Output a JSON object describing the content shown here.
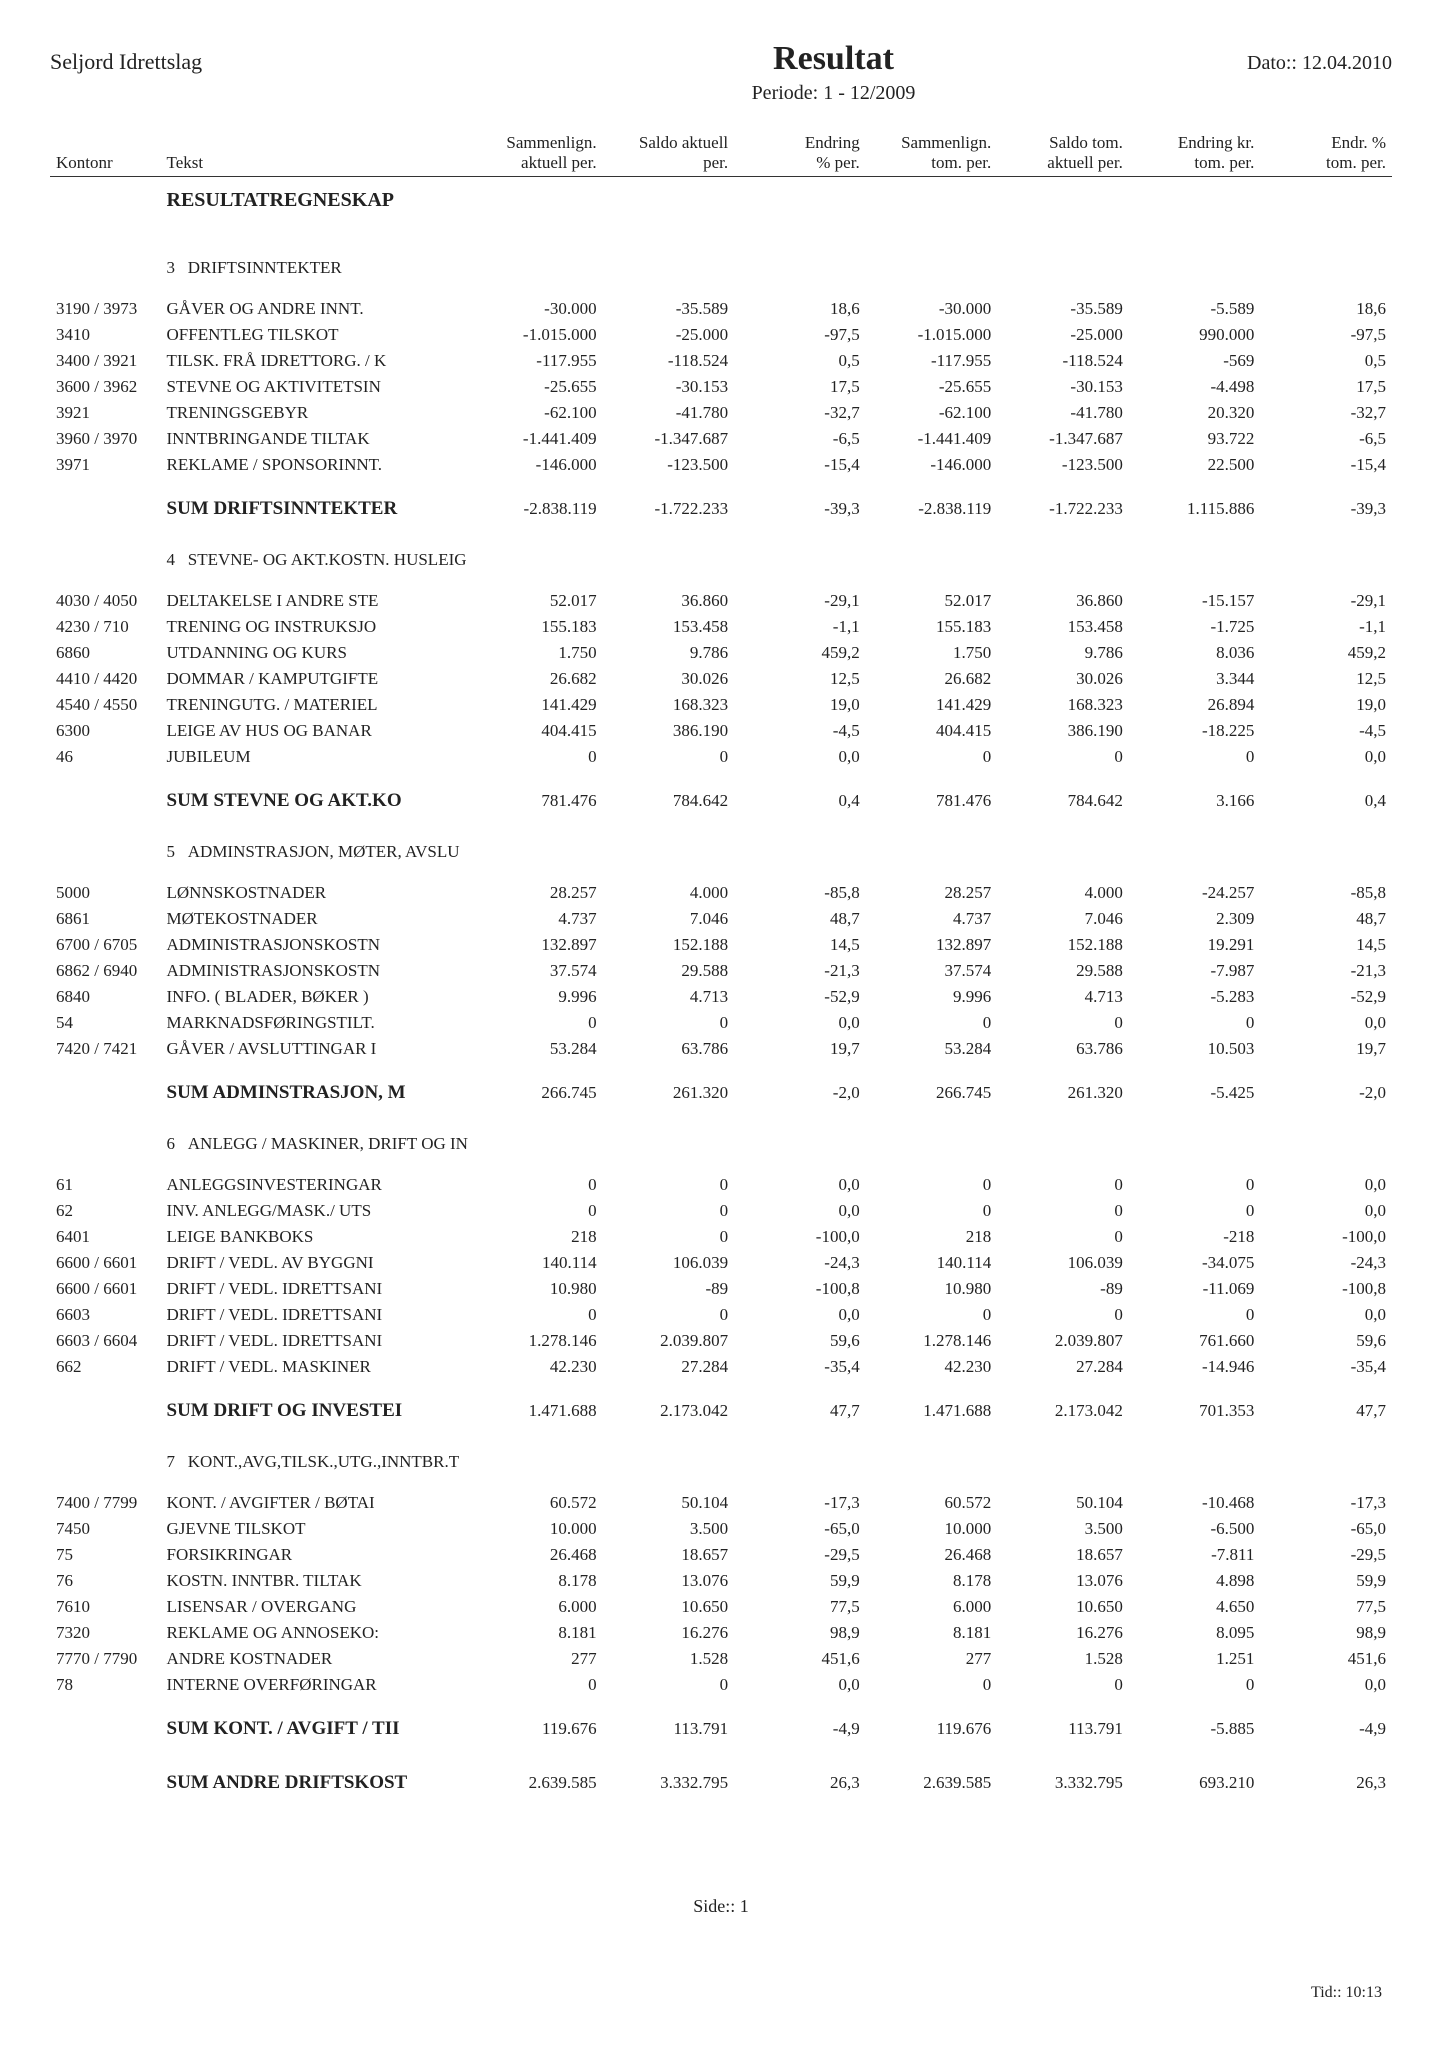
{
  "header": {
    "org": "Seljord Idrettslag",
    "title": "Resultat",
    "period": "Periode: 1 - 12/2009",
    "date": "Dato:: 12.04.2010"
  },
  "columns": {
    "konto": "Kontonr",
    "tekst": "Tekst",
    "c1a": "Sammenlign.",
    "c1b": "aktuell per.",
    "c2a": "Saldo aktuell",
    "c2b": "per.",
    "c3a": "Endring",
    "c3b": "% per.",
    "c4a": "Sammenlign.",
    "c4b": "tom. per.",
    "c5a": "Saldo tom.",
    "c5b": "aktuell per.",
    "c6a": "Endring kr.",
    "c6b": "tom. per.",
    "c7a": "Endr. %",
    "c7b": "tom. per."
  },
  "sectionTitle": "RESULTATREGNESKAP",
  "groups": [
    {
      "catNo": "3",
      "catName": "DRIFTSINNTEKTER",
      "rows": [
        {
          "konto": "3190 / 3973",
          "tekst": "GÅVER OG ANDRE INNT.",
          "v": [
            "-30.000",
            "-35.589",
            "18,6",
            "-30.000",
            "-35.589",
            "-5.589",
            "18,6"
          ]
        },
        {
          "konto": "3410",
          "tekst": "OFFENTLEG TILSKOT",
          "v": [
            "-1.015.000",
            "-25.000",
            "-97,5",
            "-1.015.000",
            "-25.000",
            "990.000",
            "-97,5"
          ]
        },
        {
          "konto": "3400 / 3921",
          "tekst": "TILSK. FRÅ IDRETTORG. / K",
          "v": [
            "-117.955",
            "-118.524",
            "0,5",
            "-117.955",
            "-118.524",
            "-569",
            "0,5"
          ]
        },
        {
          "konto": "3600 / 3962",
          "tekst": "STEVNE OG AKTIVITETSIN",
          "v": [
            "-25.655",
            "-30.153",
            "17,5",
            "-25.655",
            "-30.153",
            "-4.498",
            "17,5"
          ]
        },
        {
          "konto": "3921",
          "tekst": "TRENINGSGEBYR",
          "v": [
            "-62.100",
            "-41.780",
            "-32,7",
            "-62.100",
            "-41.780",
            "20.320",
            "-32,7"
          ]
        },
        {
          "konto": "3960 / 3970",
          "tekst": "INNTBRINGANDE TILTAK",
          "v": [
            "-1.441.409",
            "-1.347.687",
            "-6,5",
            "-1.441.409",
            "-1.347.687",
            "93.722",
            "-6,5"
          ]
        },
        {
          "konto": "3971",
          "tekst": "REKLAME / SPONSORINNT.",
          "v": [
            "-146.000",
            "-123.500",
            "-15,4",
            "-146.000",
            "-123.500",
            "22.500",
            "-15,4"
          ]
        }
      ],
      "sum": {
        "label": "SUM DRIFTSINNTEKTER",
        "v": [
          "-2.838.119",
          "-1.722.233",
          "-39,3",
          "-2.838.119",
          "-1.722.233",
          "1.115.886",
          "-39,3"
        ]
      }
    },
    {
      "catNo": "4",
      "catName": "STEVNE- OG AKT.KOSTN. HUSLEIG",
      "rows": [
        {
          "konto": "4030 / 4050",
          "tekst": "DELTAKELSE I ANDRE STE",
          "v": [
            "52.017",
            "36.860",
            "-29,1",
            "52.017",
            "36.860",
            "-15.157",
            "-29,1"
          ]
        },
        {
          "konto": "4230 / 710",
          "tekst": "TRENING OG INSTRUKSJO",
          "v": [
            "155.183",
            "153.458",
            "-1,1",
            "155.183",
            "153.458",
            "-1.725",
            "-1,1"
          ]
        },
        {
          "konto": "6860",
          "tekst": "UTDANNING OG KURS",
          "v": [
            "1.750",
            "9.786",
            "459,2",
            "1.750",
            "9.786",
            "8.036",
            "459,2"
          ]
        },
        {
          "konto": "4410 / 4420",
          "tekst": "DOMMAR / KAMPUTGIFTE",
          "v": [
            "26.682",
            "30.026",
            "12,5",
            "26.682",
            "30.026",
            "3.344",
            "12,5"
          ]
        },
        {
          "konto": "4540 / 4550",
          "tekst": "TRENINGUTG. / MATERIEL",
          "v": [
            "141.429",
            "168.323",
            "19,0",
            "141.429",
            "168.323",
            "26.894",
            "19,0"
          ]
        },
        {
          "konto": "6300",
          "tekst": "LEIGE AV HUS OG BANAR",
          "v": [
            "404.415",
            "386.190",
            "-4,5",
            "404.415",
            "386.190",
            "-18.225",
            "-4,5"
          ]
        },
        {
          "konto": "46",
          "tekst": "JUBILEUM",
          "v": [
            "0",
            "0",
            "0,0",
            "0",
            "0",
            "0",
            "0,0"
          ]
        }
      ],
      "sum": {
        "label": "SUM STEVNE OG AKT.KO",
        "v": [
          "781.476",
          "784.642",
          "0,4",
          "781.476",
          "784.642",
          "3.166",
          "0,4"
        ]
      }
    },
    {
      "catNo": "5",
      "catName": "ADMINSTRASJON, MØTER, AVSLU",
      "rows": [
        {
          "konto": "5000",
          "tekst": "LØNNSKOSTNADER",
          "v": [
            "28.257",
            "4.000",
            "-85,8",
            "28.257",
            "4.000",
            "-24.257",
            "-85,8"
          ]
        },
        {
          "konto": "6861",
          "tekst": "MØTEKOSTNADER",
          "v": [
            "4.737",
            "7.046",
            "48,7",
            "4.737",
            "7.046",
            "2.309",
            "48,7"
          ]
        },
        {
          "konto": "6700 / 6705",
          "tekst": "ADMINISTRASJONSKOSTN",
          "v": [
            "132.897",
            "152.188",
            "14,5",
            "132.897",
            "152.188",
            "19.291",
            "14,5"
          ]
        },
        {
          "konto": "6862 / 6940",
          "tekst": "ADMINISTRASJONSKOSTN",
          "v": [
            "37.574",
            "29.588",
            "-21,3",
            "37.574",
            "29.588",
            "-7.987",
            "-21,3"
          ]
        },
        {
          "konto": "6840",
          "tekst": "INFO. ( BLADER, BØKER )",
          "v": [
            "9.996",
            "4.713",
            "-52,9",
            "9.996",
            "4.713",
            "-5.283",
            "-52,9"
          ]
        },
        {
          "konto": "54",
          "tekst": "MARKNADSFØRINGSTILT.",
          "v": [
            "0",
            "0",
            "0,0",
            "0",
            "0",
            "0",
            "0,0"
          ]
        },
        {
          "konto": "7420 / 7421",
          "tekst": "GÅVER / AVSLUTTINGAR I",
          "v": [
            "53.284",
            "63.786",
            "19,7",
            "53.284",
            "63.786",
            "10.503",
            "19,7"
          ]
        }
      ],
      "sum": {
        "label": "SUM ADMINSTRASJON, M",
        "v": [
          "266.745",
          "261.320",
          "-2,0",
          "266.745",
          "261.320",
          "-5.425",
          "-2,0"
        ]
      }
    },
    {
      "catNo": "6",
      "catName": "ANLEGG / MASKINER, DRIFT OG IN",
      "rows": [
        {
          "konto": "61",
          "tekst": "ANLEGGSINVESTERINGAR",
          "v": [
            "0",
            "0",
            "0,0",
            "0",
            "0",
            "0",
            "0,0"
          ]
        },
        {
          "konto": "62",
          "tekst": "INV. ANLEGG/MASK./ UTS",
          "v": [
            "0",
            "0",
            "0,0",
            "0",
            "0",
            "0",
            "0,0"
          ]
        },
        {
          "konto": "6401",
          "tekst": "LEIGE BANKBOKS",
          "v": [
            "218",
            "0",
            "-100,0",
            "218",
            "0",
            "-218",
            "-100,0"
          ]
        },
        {
          "konto": "6600 / 6601",
          "tekst": "DRIFT / VEDL. AV BYGGNI",
          "v": [
            "140.114",
            "106.039",
            "-24,3",
            "140.114",
            "106.039",
            "-34.075",
            "-24,3"
          ]
        },
        {
          "konto": "6600 / 6601",
          "tekst": "DRIFT / VEDL. IDRETTSANI",
          "v": [
            "10.980",
            "-89",
            "-100,8",
            "10.980",
            "-89",
            "-11.069",
            "-100,8"
          ]
        },
        {
          "konto": "6603",
          "tekst": "DRIFT / VEDL. IDRETTSANI",
          "v": [
            "0",
            "0",
            "0,0",
            "0",
            "0",
            "0",
            "0,0"
          ]
        },
        {
          "konto": "6603 / 6604",
          "tekst": "DRIFT / VEDL. IDRETTSANI",
          "v": [
            "1.278.146",
            "2.039.807",
            "59,6",
            "1.278.146",
            "2.039.807",
            "761.660",
            "59,6"
          ]
        },
        {
          "konto": "662",
          "tekst": "DRIFT / VEDL. MASKINER",
          "v": [
            "42.230",
            "27.284",
            "-35,4",
            "42.230",
            "27.284",
            "-14.946",
            "-35,4"
          ]
        }
      ],
      "sum": {
        "label": "SUM DRIFT OG INVESTEI",
        "v": [
          "1.471.688",
          "2.173.042",
          "47,7",
          "1.471.688",
          "2.173.042",
          "701.353",
          "47,7"
        ]
      }
    },
    {
      "catNo": "7",
      "catName": "KONT.,AVG,TILSK.,UTG.,INNTBR.T",
      "rows": [
        {
          "konto": "7400 / 7799",
          "tekst": "KONT. / AVGIFTER / BØTAI",
          "v": [
            "60.572",
            "50.104",
            "-17,3",
            "60.572",
            "50.104",
            "-10.468",
            "-17,3"
          ]
        },
        {
          "konto": "7450",
          "tekst": "GJEVNE TILSKOT",
          "v": [
            "10.000",
            "3.500",
            "-65,0",
            "10.000",
            "3.500",
            "-6.500",
            "-65,0"
          ]
        },
        {
          "konto": "75",
          "tekst": "FORSIKRINGAR",
          "v": [
            "26.468",
            "18.657",
            "-29,5",
            "26.468",
            "18.657",
            "-7.811",
            "-29,5"
          ]
        },
        {
          "konto": "76",
          "tekst": "KOSTN. INNTBR. TILTAK",
          "v": [
            "8.178",
            "13.076",
            "59,9",
            "8.178",
            "13.076",
            "4.898",
            "59,9"
          ]
        },
        {
          "konto": "7610",
          "tekst": "LISENSAR / OVERGANG",
          "v": [
            "6.000",
            "10.650",
            "77,5",
            "6.000",
            "10.650",
            "4.650",
            "77,5"
          ]
        },
        {
          "konto": "7320",
          "tekst": "REKLAME OG ANNOSEKO:",
          "v": [
            "8.181",
            "16.276",
            "98,9",
            "8.181",
            "16.276",
            "8.095",
            "98,9"
          ]
        },
        {
          "konto": "7770 / 7790",
          "tekst": "ANDRE KOSTNADER",
          "v": [
            "277",
            "1.528",
            "451,6",
            "277",
            "1.528",
            "1.251",
            "451,6"
          ]
        },
        {
          "konto": "78",
          "tekst": "INTERNE OVERFØRINGAR",
          "v": [
            "0",
            "0",
            "0,0",
            "0",
            "0",
            "0",
            "0,0"
          ]
        }
      ],
      "sum": {
        "label": "SUM KONT. / AVGIFT / TII",
        "v": [
          "119.676",
          "113.791",
          "-4,9",
          "119.676",
          "113.791",
          "-5.885",
          "-4,9"
        ]
      }
    }
  ],
  "grandSum": {
    "label": "SUM ANDRE DRIFTSKOST",
    "v": [
      "2.639.585",
      "3.332.795",
      "26,3",
      "2.639.585",
      "3.332.795",
      "693.210",
      "26,3"
    ]
  },
  "footer": {
    "page": "Side:: 1",
    "time": "Tid:: 10:13"
  }
}
